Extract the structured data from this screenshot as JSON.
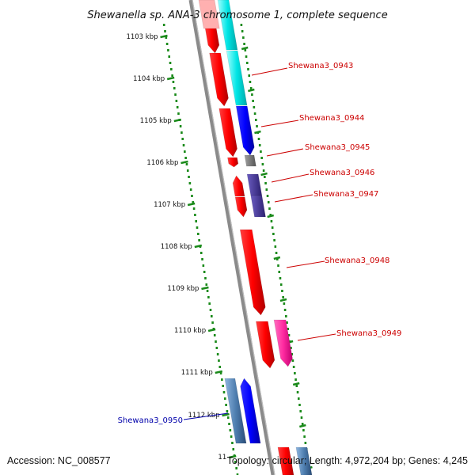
{
  "title": "Shewanella sp. ANA-3 chromosome 1, complete sequence",
  "accession": "Accession: NC_008577",
  "summary": "Topology: circular; Length: 4,972,204 bp; Genes: 4,245",
  "ticks": [
    "1103 kbp",
    "1104 kbp",
    "1105 kbp",
    "1106 kbp",
    "1107 kbp",
    "1108 kbp",
    "1109 kbp",
    "1110 kbp",
    "1111 kbp",
    "1112 kbp",
    "11"
  ],
  "genes": [
    {
      "name": "Shewana3_0943",
      "color": "#cc0000"
    },
    {
      "name": "Shewana3_0944",
      "color": "#cc0000"
    },
    {
      "name": "Shewana3_0945",
      "color": "#cc0000"
    },
    {
      "name": "Shewana3_0946",
      "color": "#cc0000"
    },
    {
      "name": "Shewana3_0947",
      "color": "#cc0000"
    },
    {
      "name": "Shewana3_0948",
      "color": "#cc0000"
    },
    {
      "name": "Shewana3_0949",
      "color": "#cc0000"
    },
    {
      "name": "Shewana3_0950",
      "color": "#0000aa"
    }
  ],
  "colors": {
    "cds_forward": "#ff0000",
    "cds_reverse": "#0000ff",
    "cyan": "#00e5e5",
    "steel": "#4f7fb0",
    "gray": "#777777",
    "indigo": "#4a3c96",
    "magenta": "#ff2aa0",
    "pink": "#ffb0b0",
    "backbone": "#8a8a8a",
    "tick": "#1a8a1a"
  }
}
